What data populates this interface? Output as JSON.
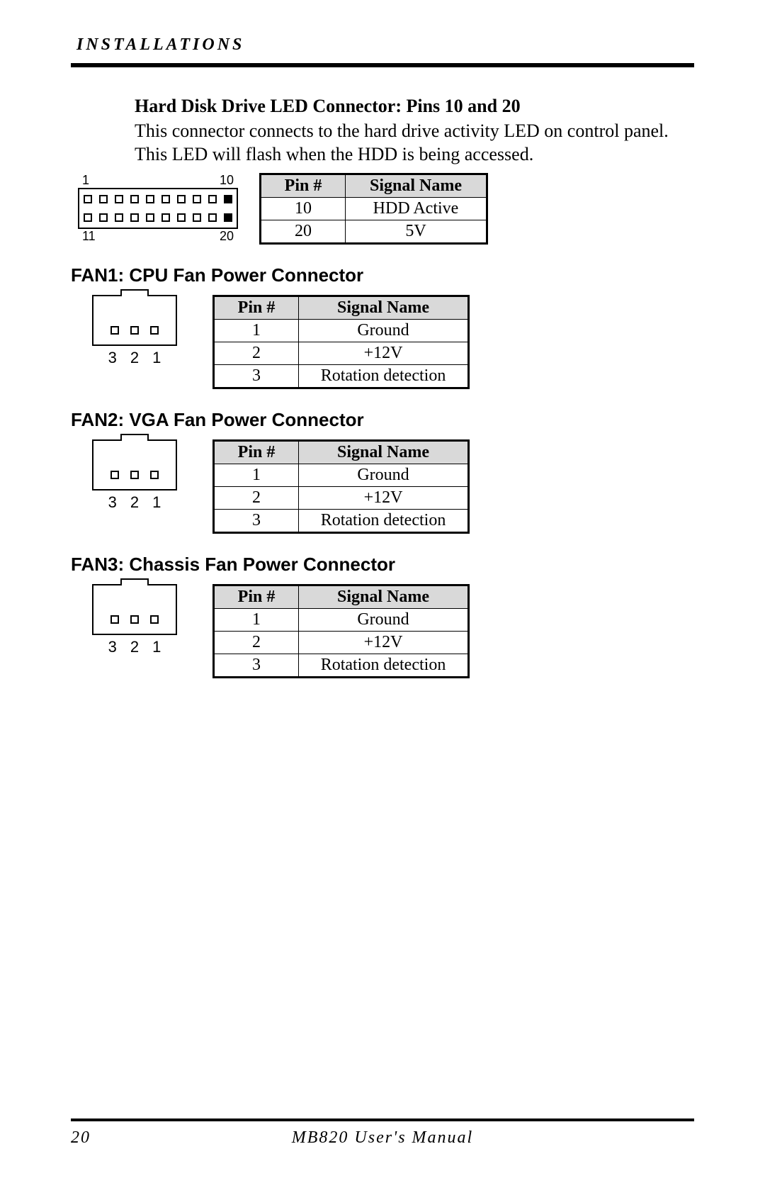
{
  "header": {
    "section": "INSTALLATIONS"
  },
  "hdd": {
    "title": "Hard Disk Drive LED Connector: Pins 10 and 20",
    "body": "This connector connects to the hard drive activity LED on control panel. This LED will flash when the HDD is being accessed.",
    "diagram": {
      "top_left_label": "1",
      "top_right_label": "10",
      "bottom_left_label": "11",
      "bottom_right_label": "20",
      "cols": 10,
      "filled_top_index": 9,
      "filled_bottom_index": 9
    },
    "table": {
      "columns": [
        "Pin #",
        "Signal Name"
      ],
      "rows": [
        [
          "10",
          "HDD Active"
        ],
        [
          "20",
          "5V"
        ]
      ]
    }
  },
  "fan1": {
    "title": "FAN1: CPU Fan Power Connector",
    "diagram_labels": [
      "3",
      "2",
      "1"
    ],
    "table": {
      "columns": [
        "Pin #",
        "Signal Name"
      ],
      "rows": [
        [
          "1",
          "Ground"
        ],
        [
          "2",
          "+12V"
        ],
        [
          "3",
          "Rotation detection"
        ]
      ]
    }
  },
  "fan2": {
    "title": "FAN2: VGA Fan Power Connector",
    "diagram_labels": [
      "3",
      "2",
      "1"
    ],
    "table": {
      "columns": [
        "Pin #",
        "Signal Name"
      ],
      "rows": [
        [
          "1",
          "Ground"
        ],
        [
          "2",
          "+12V"
        ],
        [
          "3",
          "Rotation detection"
        ]
      ]
    }
  },
  "fan3": {
    "title": "FAN3: Chassis Fan Power Connector",
    "diagram_labels": [
      "3",
      "2",
      "1"
    ],
    "table": {
      "columns": [
        "Pin #",
        "Signal Name"
      ],
      "rows": [
        [
          "1",
          "Ground"
        ],
        [
          "2",
          "+12V"
        ],
        [
          "3",
          "Rotation detection"
        ]
      ]
    }
  },
  "footer": {
    "page": "20",
    "manual": "MB820 User's Manual"
  },
  "colors": {
    "text": "#000000",
    "background": "#ffffff",
    "table_header_bg": "#d9d9d9",
    "rule": "#000000"
  }
}
